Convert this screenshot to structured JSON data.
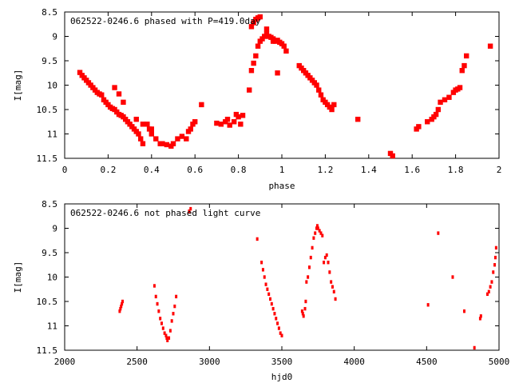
{
  "marker_color": "#ff0000",
  "chart_data": [
    {
      "type": "scatter",
      "title": "062522-0246.6 phased with P=419.0day",
      "xlabel": "phase",
      "ylabel": "I[mag]",
      "xlim": [
        0,
        2
      ],
      "ylim": [
        11.5,
        8.5
      ],
      "y_inverted": true,
      "grid": false,
      "x_ticks": [
        "0",
        "0.2",
        "0.4",
        "0.6",
        "0.8",
        "1",
        "1.2",
        "1.4",
        "1.6",
        "1.8",
        "2"
      ],
      "x_tick_values": [
        0,
        0.2,
        0.4,
        0.6,
        0.8,
        1.0,
        1.2,
        1.4,
        1.6,
        1.8,
        2.0
      ],
      "y_ticks": [
        "8.5",
        "9",
        "9.5",
        "10",
        "10.5",
        "11",
        "11.5"
      ],
      "y_tick_values": [
        8.5,
        9,
        9.5,
        10,
        10.5,
        11,
        11.5
      ],
      "points": [
        [
          0.07,
          9.74
        ],
        [
          0.08,
          9.8
        ],
        [
          0.09,
          9.85
        ],
        [
          0.1,
          9.9
        ],
        [
          0.11,
          9.95
        ],
        [
          0.12,
          10.0
        ],
        [
          0.13,
          10.05
        ],
        [
          0.14,
          10.1
        ],
        [
          0.15,
          10.15
        ],
        [
          0.16,
          10.18
        ],
        [
          0.17,
          10.2
        ],
        [
          0.18,
          10.3
        ],
        [
          0.19,
          10.35
        ],
        [
          0.2,
          10.4
        ],
        [
          0.21,
          10.45
        ],
        [
          0.22,
          10.48
        ],
        [
          0.23,
          10.5
        ],
        [
          0.24,
          10.55
        ],
        [
          0.25,
          10.6
        ],
        [
          0.26,
          10.62
        ],
        [
          0.27,
          10.65
        ],
        [
          0.28,
          10.7
        ],
        [
          0.29,
          10.75
        ],
        [
          0.3,
          10.8
        ],
        [
          0.31,
          10.85
        ],
        [
          0.32,
          10.9
        ],
        [
          0.33,
          10.95
        ],
        [
          0.34,
          11.0
        ],
        [
          0.35,
          11.1
        ],
        [
          0.36,
          11.2
        ],
        [
          0.38,
          10.8
        ],
        [
          0.39,
          10.9
        ],
        [
          0.4,
          11.0
        ],
        [
          0.42,
          11.1
        ],
        [
          0.44,
          11.2
        ],
        [
          0.45,
          11.2
        ],
        [
          0.47,
          11.22
        ],
        [
          0.49,
          11.25
        ],
        [
          0.5,
          11.2
        ],
        [
          0.52,
          11.1
        ],
        [
          0.54,
          11.05
        ],
        [
          0.56,
          11.1
        ],
        [
          0.57,
          10.95
        ],
        [
          0.58,
          10.9
        ],
        [
          0.59,
          10.8
        ],
        [
          0.6,
          10.75
        ],
        [
          0.63,
          10.4
        ],
        [
          0.25,
          10.18
        ],
        [
          0.27,
          10.35
        ],
        [
          0.23,
          10.05
        ],
        [
          0.33,
          10.7
        ],
        [
          0.36,
          10.8
        ],
        [
          0.4,
          10.9
        ],
        [
          0.7,
          10.78
        ],
        [
          0.72,
          10.8
        ],
        [
          0.74,
          10.75
        ],
        [
          0.75,
          10.7
        ],
        [
          0.76,
          10.82
        ],
        [
          0.78,
          10.75
        ],
        [
          0.79,
          10.6
        ],
        [
          0.8,
          10.65
        ],
        [
          0.81,
          10.8
        ],
        [
          0.82,
          10.62
        ],
        [
          0.85,
          10.1
        ],
        [
          0.86,
          9.7
        ],
        [
          0.87,
          9.55
        ],
        [
          0.88,
          9.4
        ],
        [
          0.89,
          9.2
        ],
        [
          0.9,
          9.1
        ],
        [
          0.91,
          9.05
        ],
        [
          0.92,
          9.0
        ],
        [
          0.93,
          8.95
        ],
        [
          0.94,
          9.0
        ],
        [
          0.95,
          9.02
        ],
        [
          0.96,
          9.05
        ],
        [
          0.97,
          9.1
        ],
        [
          0.98,
          9.08
        ],
        [
          0.99,
          9.12
        ],
        [
          1.0,
          9.15
        ],
        [
          1.01,
          9.2
        ],
        [
          1.02,
          9.3
        ],
        [
          0.93,
          8.85
        ],
        [
          0.96,
          9.1
        ],
        [
          0.98,
          9.75
        ],
        [
          0.86,
          8.8
        ],
        [
          0.87,
          8.72
        ],
        [
          0.88,
          8.65
        ],
        [
          0.89,
          8.62
        ],
        [
          0.9,
          8.6
        ],
        [
          1.08,
          9.6
        ],
        [
          1.09,
          9.65
        ],
        [
          1.1,
          9.7
        ],
        [
          1.11,
          9.75
        ],
        [
          1.12,
          9.8
        ],
        [
          1.13,
          9.85
        ],
        [
          1.14,
          9.9
        ],
        [
          1.15,
          9.95
        ],
        [
          1.16,
          10.0
        ],
        [
          1.17,
          10.1
        ],
        [
          1.18,
          10.2
        ],
        [
          1.19,
          10.3
        ],
        [
          1.2,
          10.35
        ],
        [
          1.21,
          10.4
        ],
        [
          1.22,
          10.45
        ],
        [
          1.23,
          10.5
        ],
        [
          1.24,
          10.4
        ],
        [
          1.35,
          10.7
        ],
        [
          1.5,
          11.4
        ],
        [
          1.51,
          11.45
        ],
        [
          1.62,
          10.9
        ],
        [
          1.63,
          10.85
        ],
        [
          1.67,
          10.75
        ],
        [
          1.69,
          10.7
        ],
        [
          1.7,
          10.65
        ],
        [
          1.71,
          10.6
        ],
        [
          1.72,
          10.5
        ],
        [
          1.73,
          10.35
        ],
        [
          1.75,
          10.3
        ],
        [
          1.77,
          10.25
        ],
        [
          1.79,
          10.15
        ],
        [
          1.8,
          10.1
        ],
        [
          1.81,
          10.08
        ],
        [
          1.82,
          10.05
        ],
        [
          1.83,
          9.7
        ],
        [
          1.84,
          9.6
        ],
        [
          1.85,
          9.4
        ],
        [
          1.96,
          9.2
        ]
      ]
    },
    {
      "type": "scatter",
      "title": "062522-0246.6 not phased light curve",
      "xlabel": "hjd0",
      "ylabel": "I[mag]",
      "xlim": [
        2000,
        5000
      ],
      "ylim": [
        11.5,
        8.5
      ],
      "y_inverted": true,
      "grid": false,
      "x_ticks": [
        "2000",
        "2500",
        "3000",
        "3500",
        "4000",
        "4500",
        "5000"
      ],
      "x_tick_values": [
        2000,
        2500,
        3000,
        3500,
        4000,
        4500,
        5000
      ],
      "y_ticks": [
        "8.5",
        "9",
        "9.5",
        "10",
        "10.5",
        "11",
        "11.5"
      ],
      "y_tick_values": [
        8.5,
        9,
        9.5,
        10,
        10.5,
        11,
        11.5
      ],
      "points": [
        [
          2380,
          10.7
        ],
        [
          2385,
          10.65
        ],
        [
          2390,
          10.6
        ],
        [
          2395,
          10.55
        ],
        [
          2400,
          10.5
        ],
        [
          2620,
          10.18
        ],
        [
          2630,
          10.4
        ],
        [
          2640,
          10.55
        ],
        [
          2650,
          10.7
        ],
        [
          2660,
          10.85
        ],
        [
          2670,
          10.95
        ],
        [
          2680,
          11.05
        ],
        [
          2690,
          11.15
        ],
        [
          2700,
          11.2
        ],
        [
          2705,
          11.25
        ],
        [
          2710,
          11.3
        ],
        [
          2720,
          11.25
        ],
        [
          2730,
          11.1
        ],
        [
          2740,
          10.9
        ],
        [
          2750,
          10.75
        ],
        [
          2760,
          10.6
        ],
        [
          2770,
          10.4
        ],
        [
          2860,
          8.65
        ],
        [
          2870,
          8.6
        ],
        [
          3330,
          9.22
        ],
        [
          3360,
          9.7
        ],
        [
          3370,
          9.85
        ],
        [
          3380,
          10.0
        ],
        [
          3390,
          10.15
        ],
        [
          3400,
          10.25
        ],
        [
          3410,
          10.35
        ],
        [
          3420,
          10.45
        ],
        [
          3430,
          10.55
        ],
        [
          3440,
          10.65
        ],
        [
          3450,
          10.75
        ],
        [
          3460,
          10.85
        ],
        [
          3470,
          10.95
        ],
        [
          3480,
          11.05
        ],
        [
          3490,
          11.15
        ],
        [
          3500,
          11.2
        ],
        [
          3640,
          10.7
        ],
        [
          3645,
          10.75
        ],
        [
          3650,
          10.8
        ],
        [
          3660,
          10.65
        ],
        [
          3665,
          10.5
        ],
        [
          3670,
          10.1
        ],
        [
          3680,
          10.0
        ],
        [
          3690,
          9.8
        ],
        [
          3700,
          9.6
        ],
        [
          3710,
          9.4
        ],
        [
          3720,
          9.2
        ],
        [
          3730,
          9.1
        ],
        [
          3740,
          9.0
        ],
        [
          3745,
          8.95
        ],
        [
          3750,
          9.0
        ],
        [
          3760,
          9.05
        ],
        [
          3770,
          9.1
        ],
        [
          3780,
          9.15
        ],
        [
          3790,
          9.7
        ],
        [
          3800,
          9.6
        ],
        [
          3810,
          9.55
        ],
        [
          3820,
          9.7
        ],
        [
          3830,
          9.9
        ],
        [
          3840,
          10.1
        ],
        [
          3850,
          10.2
        ],
        [
          3860,
          10.3
        ],
        [
          3870,
          10.45
        ],
        [
          4510,
          10.57
        ],
        [
          4580,
          9.1
        ],
        [
          4680,
          10.0
        ],
        [
          4760,
          10.7
        ],
        [
          4830,
          11.45
        ],
        [
          4870,
          10.85
        ],
        [
          4875,
          10.8
        ],
        [
          4920,
          10.35
        ],
        [
          4930,
          10.3
        ],
        [
          4940,
          10.2
        ],
        [
          4950,
          10.1
        ],
        [
          4960,
          9.9
        ],
        [
          4970,
          9.75
        ],
        [
          4975,
          9.6
        ],
        [
          4980,
          9.4
        ]
      ]
    }
  ]
}
